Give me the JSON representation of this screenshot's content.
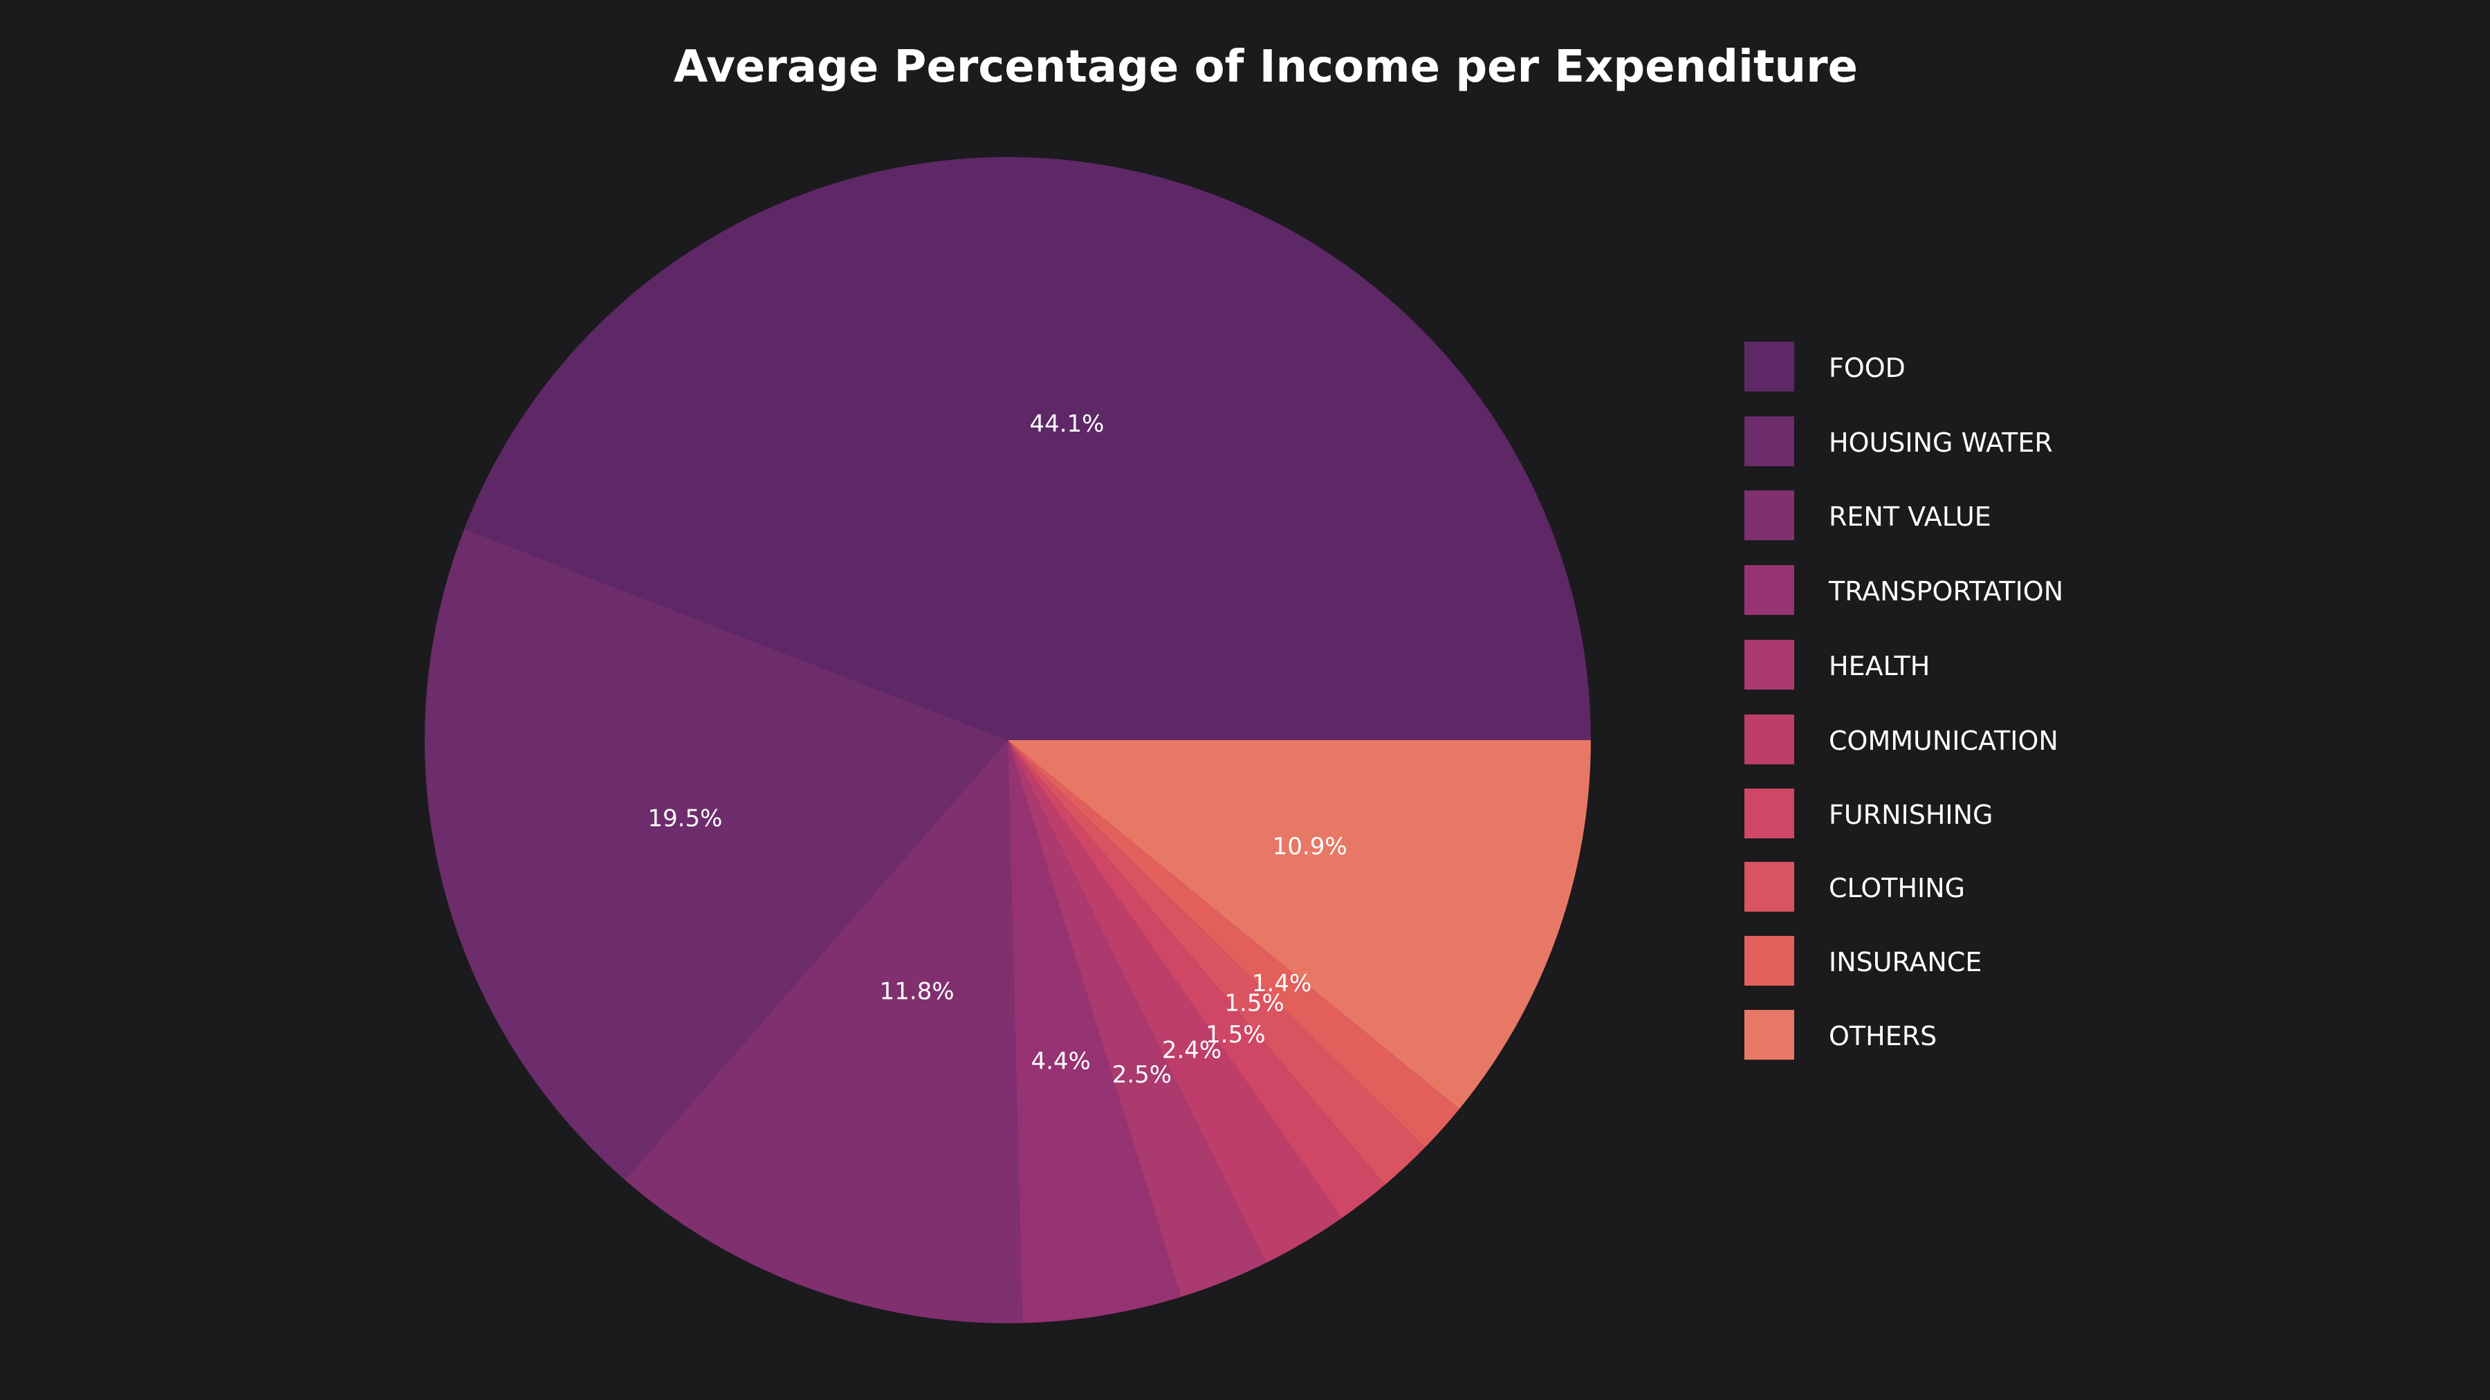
{
  "chart_data": {
    "type": "pie",
    "title": "Average Percentage of Income per Expenditure",
    "categories": [
      "FOOD",
      "HOUSING WATER",
      "RENT VALUE",
      "TRANSPORTATION",
      "HEALTH",
      "COMMUNICATION",
      "FURNISHING",
      "CLOTHING",
      "INSURANCE",
      "OTHERS"
    ],
    "values": [
      44.1,
      19.5,
      11.8,
      4.4,
      2.5,
      2.4,
      1.5,
      1.5,
      1.4,
      10.9
    ],
    "labels": [
      "44.1%",
      "19.5%",
      "11.8%",
      "4.4%",
      "2.5%",
      "2.4%",
      "1.5%",
      "1.5%",
      "1.4%",
      "10.9%"
    ],
    "colors": [
      "#5e2867",
      "#6d2c6b",
      "#80306e",
      "#963372",
      "#ab3a6e",
      "#bd3e6b",
      "#cf4765",
      "#da5360",
      "#e35f5c",
      "#e87866"
    ],
    "legend_position": "right",
    "background": "#1b1a1d"
  }
}
